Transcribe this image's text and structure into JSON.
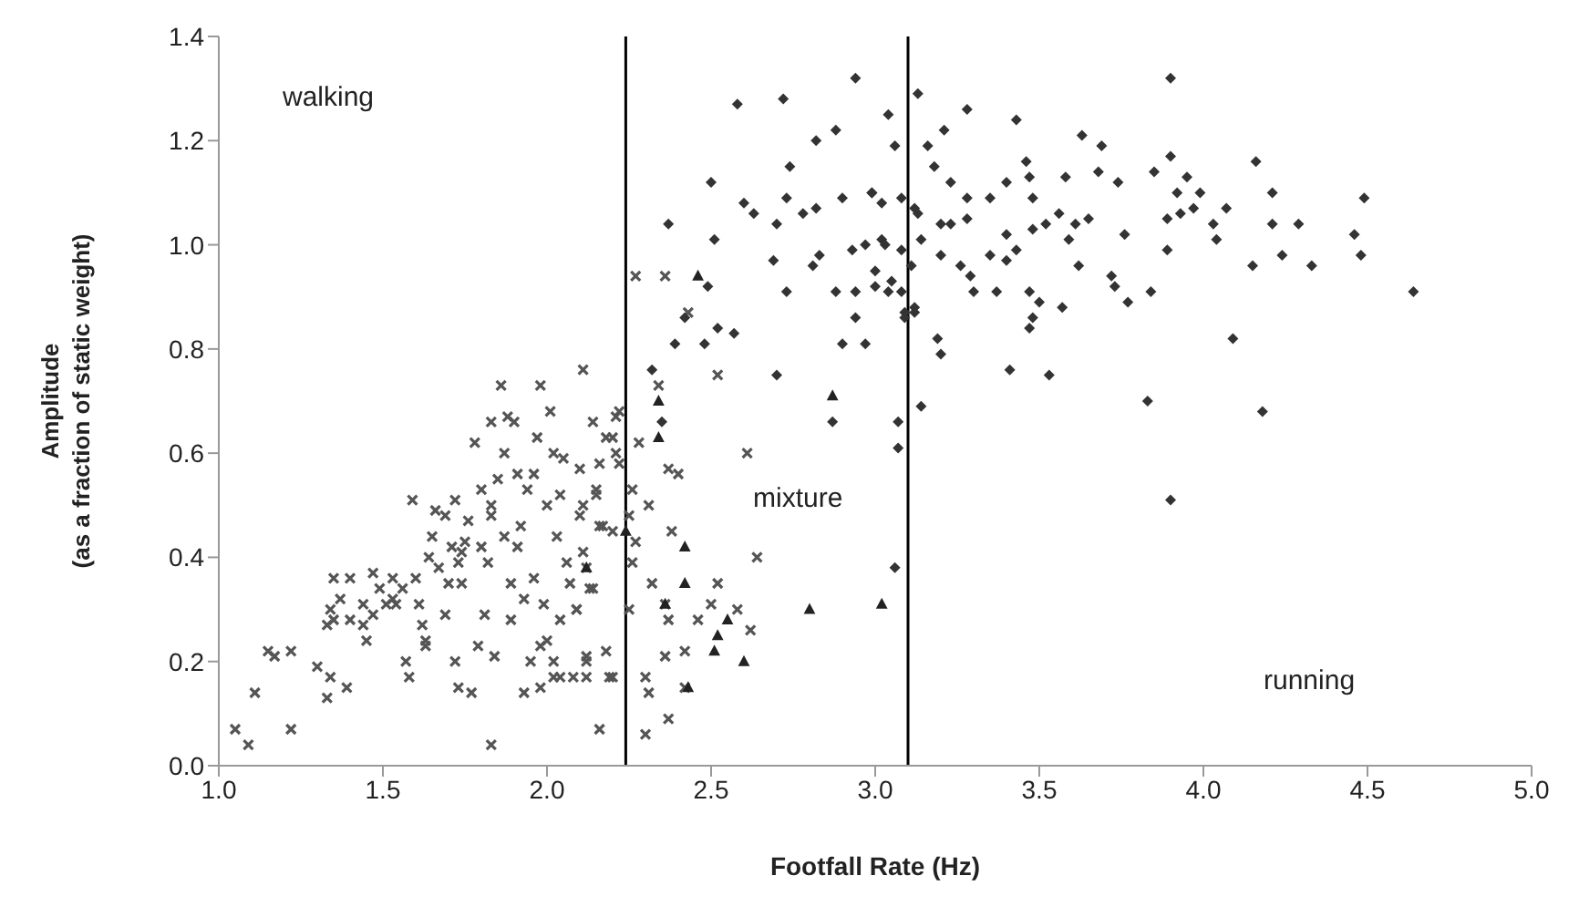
{
  "chart_data": {
    "type": "scatter",
    "xlabel": "Footfall Rate (Hz)",
    "ylabel": "Amplitude\n(as a fraction of static weight)",
    "xlim": [
      1,
      5
    ],
    "ylim": [
      0,
      1.4
    ],
    "xticks": [
      {
        "value": 1,
        "label": "1.0"
      },
      {
        "value": 1.5,
        "label": "1.5"
      },
      {
        "value": 2,
        "label": "2.0"
      },
      {
        "value": 2.5,
        "label": "2.5"
      },
      {
        "value": 3,
        "label": "3.0"
      },
      {
        "value": 3.5,
        "label": "3.5"
      },
      {
        "value": 4,
        "label": "4.0"
      },
      {
        "value": 4.5,
        "label": "4.5"
      },
      {
        "value": 5,
        "label": "5.0"
      }
    ],
    "yticks": [
      {
        "value": 0,
        "label": "0.0"
      },
      {
        "value": 0.2,
        "label": "0.2"
      },
      {
        "value": 0.4,
        "label": "0.4"
      },
      {
        "value": 0.6,
        "label": "0.6"
      },
      {
        "value": 0.8,
        "label": "0.8"
      },
      {
        "value": 1,
        "label": "1.0"
      },
      {
        "value": 1.2,
        "label": "1.2"
      },
      {
        "value": 1.4,
        "label": "1.4"
      }
    ],
    "grid": false,
    "legend": false,
    "ref_lines": [
      {
        "axis": "x",
        "value": 2.24,
        "color": "#000000"
      },
      {
        "axis": "x",
        "value": 3.1,
        "color": "#000000"
      }
    ],
    "annotations": [
      "walking",
      "mixture",
      "running"
    ],
    "series": [
      {
        "color": "#555555",
        "marker": "cross",
        "x": [
          1.05,
          1.09,
          1.11,
          1.15,
          1.17,
          1.22,
          1.22,
          1.3,
          1.33,
          1.34,
          1.34,
          1.35,
          1.35,
          1.39,
          1.4,
          1.33,
          1.44,
          1.44,
          1.45,
          1.47,
          1.49,
          1.51,
          1.53,
          1.54,
          1.56,
          1.57,
          1.58,
          1.59,
          1.6,
          1.61,
          1.62,
          1.63,
          1.63,
          1.64,
          1.65,
          1.66,
          1.69,
          1.7,
          1.71,
          1.72,
          1.72,
          1.73,
          1.73,
          1.74,
          1.75,
          1.76,
          1.77,
          1.78,
          1.79,
          1.8,
          1.81,
          1.82,
          1.83,
          1.83,
          1.83,
          1.84,
          1.85,
          1.86,
          1.87,
          1.88,
          1.89,
          1.89,
          1.9,
          1.91,
          1.92,
          1.93,
          1.93,
          1.94,
          1.95,
          1.96,
          1.97,
          1.98,
          1.98,
          1.99,
          2.0,
          2.01,
          2.02,
          2.02,
          2.03,
          2.04,
          2.05,
          2.06,
          2.07,
          2.08,
          2.09,
          2.1,
          2.11,
          2.11,
          2.12,
          2.12,
          2.13,
          2.14,
          2.15,
          2.16,
          2.17,
          2.18,
          2.19,
          2.2,
          2.21,
          2.21,
          1.91,
          1.96,
          2.0,
          1.87,
          1.83,
          1.8,
          1.74,
          1.69,
          1.67,
          2.02,
          1.98,
          1.53,
          1.47,
          1.4,
          1.37,
          2.27,
          2.36,
          2.43,
          2.52,
          2.61,
          2.64,
          2.4,
          2.37,
          2.34,
          2.28,
          2.26,
          2.31,
          2.25,
          2.26,
          2.32,
          2.38,
          2.36,
          2.37,
          2.46,
          2.52,
          2.5,
          2.58,
          2.62,
          2.36,
          2.42,
          2.3,
          2.31,
          2.3,
          2.37,
          2.42,
          2.22,
          2.2,
          2.22,
          2.16,
          2.15,
          2.1,
          2.16,
          2.11,
          2.14,
          2.09,
          2.04,
          2.12,
          2.18,
          2.2,
          2.04,
          2.12,
          2.27,
          2.25
        ],
        "values": [
          0.07,
          0.04,
          0.14,
          0.22,
          0.21,
          0.22,
          0.07,
          0.19,
          0.13,
          0.17,
          0.3,
          0.28,
          0.36,
          0.15,
          0.36,
          0.27,
          0.31,
          0.27,
          0.24,
          0.37,
          0.34,
          0.31,
          0.32,
          0.31,
          0.34,
          0.2,
          0.17,
          0.51,
          0.36,
          0.31,
          0.27,
          0.24,
          0.23,
          0.4,
          0.44,
          0.49,
          0.29,
          0.35,
          0.42,
          0.51,
          0.2,
          0.15,
          0.39,
          0.35,
          0.43,
          0.47,
          0.14,
          0.62,
          0.23,
          0.53,
          0.29,
          0.39,
          0.04,
          0.5,
          0.66,
          0.21,
          0.55,
          0.73,
          0.6,
          0.67,
          0.35,
          0.28,
          0.66,
          0.42,
          0.46,
          0.32,
          0.14,
          0.53,
          0.2,
          0.36,
          0.63,
          0.73,
          0.15,
          0.31,
          0.24,
          0.68,
          0.6,
          0.17,
          0.44,
          0.52,
          0.59,
          0.39,
          0.35,
          0.17,
          0.3,
          0.57,
          0.5,
          0.76,
          0.21,
          0.38,
          0.34,
          0.66,
          0.53,
          0.07,
          0.46,
          0.63,
          0.17,
          0.45,
          0.6,
          0.67,
          0.56,
          0.56,
          0.5,
          0.44,
          0.48,
          0.42,
          0.41,
          0.48,
          0.38,
          0.2,
          0.23,
          0.36,
          0.29,
          0.28,
          0.32,
          0.94,
          0.94,
          0.87,
          0.75,
          0.6,
          0.4,
          0.56,
          0.57,
          0.73,
          0.62,
          0.53,
          0.5,
          0.48,
          0.39,
          0.35,
          0.45,
          0.31,
          0.28,
          0.28,
          0.35,
          0.31,
          0.3,
          0.26,
          0.21,
          0.22,
          0.17,
          0.14,
          0.06,
          0.09,
          0.15,
          0.68,
          0.63,
          0.58,
          0.58,
          0.52,
          0.48,
          0.46,
          0.41,
          0.34,
          0.3,
          0.28,
          0.2,
          0.22,
          0.17,
          0.17,
          0.17,
          0.43,
          0.3
        ]
      },
      {
        "color": "#222222",
        "marker": "triangle",
        "x": [
          2.46,
          2.34,
          2.34,
          2.24,
          2.42,
          2.42,
          2.36,
          2.55,
          2.52,
          2.51,
          2.6,
          2.43,
          2.87,
          2.8,
          3.02,
          2.12
        ],
        "values": [
          0.94,
          0.7,
          0.63,
          0.45,
          0.42,
          0.35,
          0.31,
          0.28,
          0.25,
          0.22,
          0.2,
          0.15,
          0.71,
          0.3,
          0.31,
          0.38
        ]
      },
      {
        "color": "#333333",
        "marker": "diamond",
        "x": [
          2.37,
          2.51,
          2.63,
          2.73,
          2.78,
          2.82,
          2.9,
          2.99,
          3.02,
          3.08,
          3.12,
          3.14,
          2.7,
          2.69,
          2.73,
          2.81,
          2.83,
          2.88,
          2.93,
          2.94,
          2.97,
          3.0,
          3.02,
          3.05,
          3.08,
          3.11,
          3.12,
          2.94,
          2.9,
          2.97,
          2.42,
          2.39,
          2.48,
          2.52,
          2.57,
          2.49,
          2.7,
          2.32,
          2.35,
          2.87,
          3.07,
          3.07,
          3.06,
          3.14,
          3.09,
          3.04,
          3.13,
          3.28,
          3.43,
          3.21,
          3.16,
          3.06,
          3.18,
          3.46,
          3.63,
          3.69,
          3.9,
          3.9,
          3.95,
          4.16,
          4.21,
          4.49,
          2.99,
          3.13,
          3.23,
          3.28,
          3.35,
          3.4,
          3.47,
          3.48,
          3.58,
          3.68,
          3.74,
          3.85,
          3.92,
          3.99,
          4.07,
          3.03,
          3.2,
          3.23,
          3.28,
          3.4,
          3.48,
          3.52,
          3.56,
          3.59,
          3.61,
          3.65,
          3.76,
          3.89,
          3.93,
          3.97,
          4.03,
          4.04,
          4.21,
          4.29,
          4.46,
          4.48,
          4.24,
          4.33,
          4.15,
          3.89,
          3.84,
          3.72,
          3.73,
          3.77,
          3.57,
          3.5,
          3.47,
          3.48,
          3.47,
          3.37,
          3.3,
          3.29,
          3.26,
          3.2,
          3.35,
          3.4,
          3.43,
          3.62,
          3.0,
          3.04,
          3.12,
          3.19,
          3.2,
          3.41,
          3.53,
          3.83,
          4.09,
          4.18,
          3.9,
          4.64,
          3.08,
          3.09,
          2.58,
          2.72,
          2.94,
          2.88,
          2.82,
          2.74,
          2.5,
          2.6
        ],
        "values": [
          1.04,
          1.01,
          1.06,
          1.09,
          1.06,
          1.07,
          1.09,
          1.1,
          1.08,
          1.09,
          1.07,
          1.01,
          1.04,
          0.97,
          0.91,
          0.96,
          0.98,
          0.91,
          0.99,
          0.91,
          1.0,
          0.95,
          1.01,
          0.93,
          0.91,
          0.96,
          0.87,
          0.86,
          0.81,
          0.81,
          0.86,
          0.81,
          0.81,
          0.84,
          0.83,
          0.92,
          0.75,
          0.76,
          0.66,
          0.66,
          0.66,
          0.61,
          0.38,
          0.69,
          0.87,
          1.25,
          1.29,
          1.26,
          1.24,
          1.22,
          1.19,
          1.19,
          1.15,
          1.16,
          1.21,
          1.19,
          1.32,
          1.17,
          1.13,
          1.16,
          1.1,
          1.09,
          1.1,
          1.06,
          1.12,
          1.09,
          1.09,
          1.12,
          1.13,
          1.09,
          1.13,
          1.14,
          1.12,
          1.14,
          1.1,
          1.1,
          1.07,
          1.0,
          1.04,
          1.04,
          1.05,
          1.02,
          1.03,
          1.04,
          1.06,
          1.01,
          1.04,
          1.05,
          1.02,
          1.05,
          1.06,
          1.07,
          1.04,
          1.01,
          1.04,
          1.04,
          1.02,
          0.98,
          0.98,
          0.96,
          0.96,
          0.99,
          0.91,
          0.94,
          0.92,
          0.89,
          0.88,
          0.89,
          0.91,
          0.86,
          0.84,
          0.91,
          0.91,
          0.94,
          0.96,
          0.98,
          0.98,
          0.97,
          0.99,
          0.96,
          0.92,
          0.91,
          0.88,
          0.82,
          0.79,
          0.76,
          0.75,
          0.7,
          0.82,
          0.68,
          0.51,
          0.91,
          0.99,
          0.86,
          1.27,
          1.28,
          1.32,
          1.22,
          1.2,
          1.15,
          1.12,
          1.08
        ]
      }
    ]
  }
}
